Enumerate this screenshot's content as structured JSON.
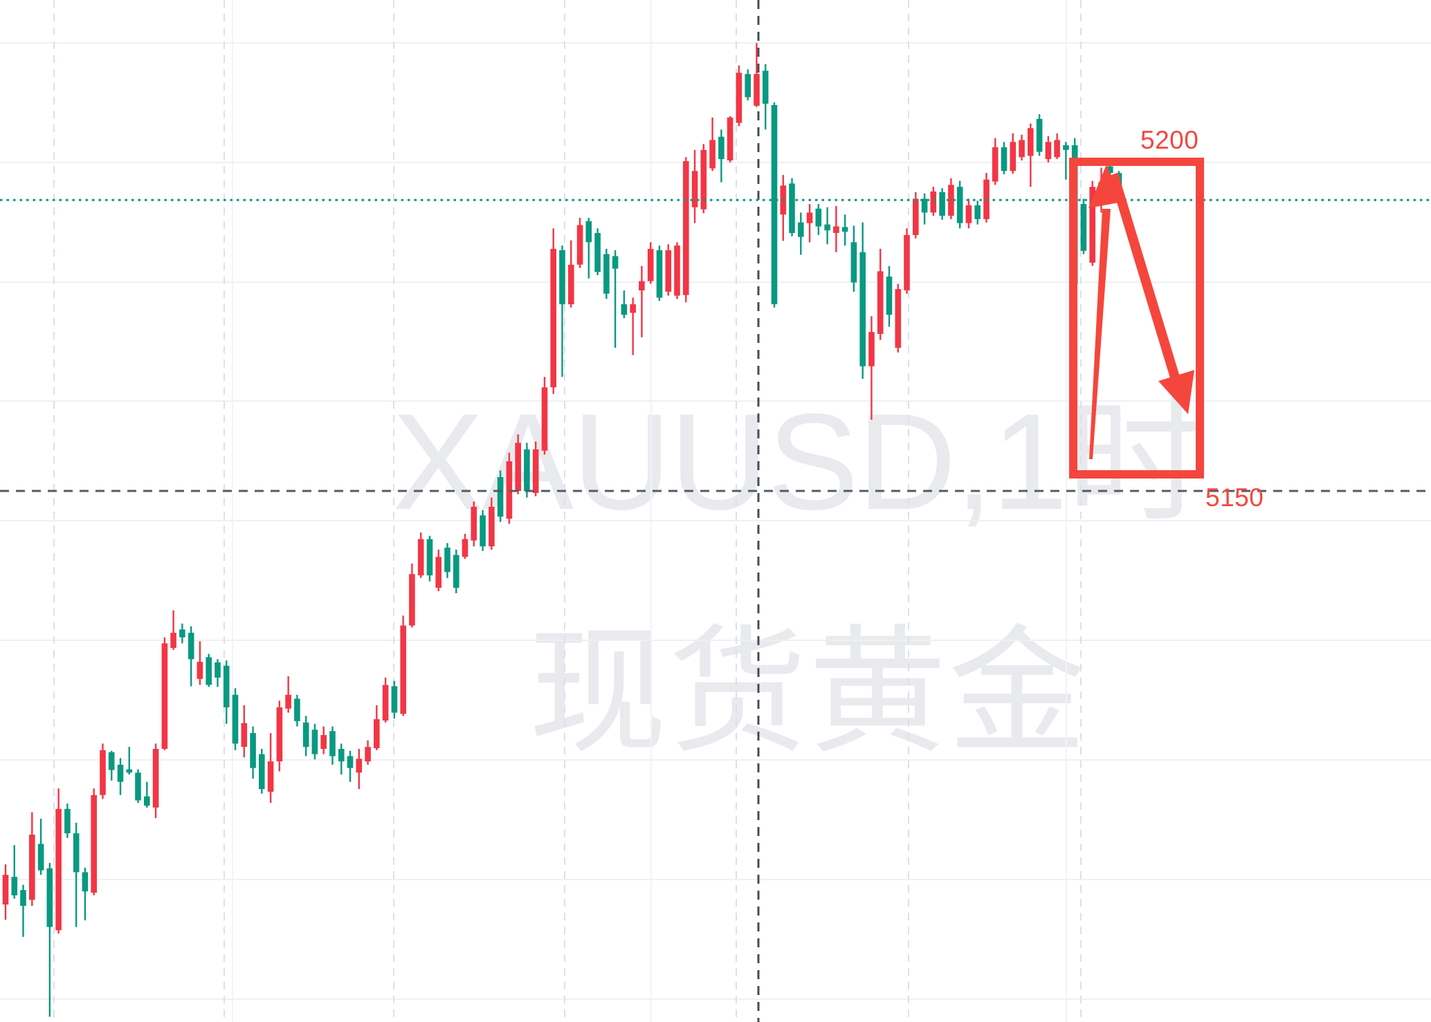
{
  "chart_data": {
    "type": "candlestick",
    "title": "",
    "symbol_watermark": "XAUUSD,1时",
    "name_watermark": "现货黄金",
    "legend_position": "none",
    "grid": "on",
    "ylim": [
      5060,
      5225
    ],
    "levels": {
      "current_price_dotted": 5194.1,
      "support_dashed": 5150
    },
    "annotation_labels": {
      "upper": "5200",
      "lower": "5150"
    },
    "candles_ohlc": [
      [
        5087.3,
        5093.4,
        5085.0,
        5091.8
      ],
      [
        5091.5,
        5096.3,
        5088.2,
        5088.7
      ],
      [
        5089.5,
        5090.3,
        5082.4,
        5087.1
      ],
      [
        5088.0,
        5101.3,
        5087.1,
        5097.9
      ],
      [
        5096.5,
        5100.3,
        5091.8,
        5092.5
      ],
      [
        5092.8,
        5093.6,
        5070.3,
        5083.9
      ],
      [
        5083.4,
        5104.9,
        5082.9,
        5101.8
      ],
      [
        5101.8,
        5102.6,
        5097.4,
        5098.1
      ],
      [
        5098.1,
        5099.7,
        5083.9,
        5092.2
      ],
      [
        5092.2,
        5092.9,
        5084.9,
        5089.3
      ],
      [
        5089.1,
        5104.9,
        5088.7,
        5103.9
      ],
      [
        5103.9,
        5111.7,
        5103.3,
        5110.7
      ],
      [
        5110.4,
        5110.6,
        5106.1,
        5107.7
      ],
      [
        5108.5,
        5109.5,
        5103.9,
        5105.9
      ],
      [
        5107.8,
        5111.2,
        5107.0,
        5107.3
      ],
      [
        5107.3,
        5107.8,
        5102.7,
        5103.1
      ],
      [
        5103.7,
        5105.9,
        5102.0,
        5102.3
      ],
      [
        5102.0,
        5111.7,
        5100.4,
        5110.9
      ],
      [
        5110.9,
        5127.8,
        5110.7,
        5126.9
      ],
      [
        5126.2,
        5131.9,
        5125.9,
        5128.5
      ],
      [
        5129.0,
        5129.9,
        5126.9,
        5127.8
      ],
      [
        5128.5,
        5129.5,
        5120.4,
        5124.5
      ],
      [
        5121.5,
        5127.2,
        5120.6,
        5124.1
      ],
      [
        5124.8,
        5125.3,
        5120.3,
        5120.6
      ],
      [
        5124.0,
        5124.5,
        5120.3,
        5121.7
      ],
      [
        5123.5,
        5124.3,
        5114.7,
        5117.2
      ],
      [
        5119.1,
        5120.1,
        5110.7,
        5111.7
      ],
      [
        5111.2,
        5117.5,
        5109.6,
        5114.8
      ],
      [
        5113.3,
        5114.3,
        5106.4,
        5108.0
      ],
      [
        5110.1,
        5110.9,
        5104.1,
        5104.8
      ],
      [
        5104.4,
        5113.3,
        5102.7,
        5109.0
      ],
      [
        5109.0,
        5118.2,
        5107.5,
        5117.2
      ],
      [
        5117.0,
        5121.9,
        5116.4,
        5119.1
      ],
      [
        5118.5,
        5119.1,
        5114.3,
        5115.1
      ],
      [
        5114.9,
        5115.9,
        5109.8,
        5111.2
      ],
      [
        5113.8,
        5114.7,
        5109.3,
        5110.1
      ],
      [
        5110.9,
        5114.3,
        5110.1,
        5113.0
      ],
      [
        5113.6,
        5114.3,
        5108.5,
        5109.8
      ],
      [
        5110.9,
        5111.7,
        5107.0,
        5109.0
      ],
      [
        5109.8,
        5110.6,
        5105.9,
        5108.0
      ],
      [
        5107.3,
        5110.9,
        5104.8,
        5109.4
      ],
      [
        5109.0,
        5112.2,
        5108.5,
        5111.2
      ],
      [
        5111.0,
        5117.5,
        5110.7,
        5115.4
      ],
      [
        5115.2,
        5121.7,
        5114.9,
        5120.6
      ],
      [
        5120.4,
        5121.2,
        5115.5,
        5116.4
      ],
      [
        5116.2,
        5131.1,
        5115.9,
        5129.6
      ],
      [
        5129.6,
        5139.0,
        5129.3,
        5137.4
      ],
      [
        5137.2,
        5143.7,
        5136.8,
        5142.7
      ],
      [
        5142.7,
        5143.2,
        5136.3,
        5137.2
      ],
      [
        5135.3,
        5141.1,
        5134.8,
        5140.0
      ],
      [
        5141.4,
        5142.1,
        5136.8,
        5137.7
      ],
      [
        5140.3,
        5141.1,
        5134.5,
        5135.3
      ],
      [
        5140.0,
        5143.5,
        5139.7,
        5142.7
      ],
      [
        5142.5,
        5148.4,
        5141.6,
        5147.6
      ],
      [
        5146.3,
        5147.1,
        5140.9,
        5141.6
      ],
      [
        5141.6,
        5149.0,
        5141.1,
        5147.6
      ],
      [
        5152.1,
        5153.1,
        5145.3,
        5146.1
      ],
      [
        5145.8,
        5155.8,
        5145.0,
        5154.5
      ],
      [
        5150.0,
        5158.6,
        5149.5,
        5157.3
      ],
      [
        5156.3,
        5157.3,
        5149.0,
        5150.0
      ],
      [
        5149.7,
        5157.5,
        5149.2,
        5156.3
      ],
      [
        5156.1,
        5167.3,
        5155.5,
        5165.7
      ],
      [
        5165.7,
        5189.8,
        5164.7,
        5186.7
      ],
      [
        5186.5,
        5187.2,
        5167.3,
        5178.3
      ],
      [
        5178.3,
        5188.0,
        5177.8,
        5184.3
      ],
      [
        5184.3,
        5191.4,
        5183.8,
        5190.3
      ],
      [
        5190.9,
        5191.4,
        5182.2,
        5187.7
      ],
      [
        5189.1,
        5189.8,
        5182.7,
        5183.2
      ],
      [
        5185.9,
        5186.7,
        5179.1,
        5179.9
      ],
      [
        5185.6,
        5186.5,
        5171.7,
        5183.7
      ],
      [
        5178.3,
        5180.4,
        5176.2,
        5176.7
      ],
      [
        5177.0,
        5179.3,
        5170.6,
        5178.3
      ],
      [
        5180.4,
        5184.1,
        5173.3,
        5181.8
      ],
      [
        5181.8,
        5187.7,
        5181.4,
        5186.7
      ],
      [
        5186.5,
        5187.2,
        5178.8,
        5179.3
      ],
      [
        5180.2,
        5187.4,
        5179.6,
        5186.5
      ],
      [
        5179.6,
        5187.7,
        5179.1,
        5187.2
      ],
      [
        5179.7,
        5200.6,
        5178.6,
        5200.0
      ],
      [
        5193.0,
        5201.7,
        5190.6,
        5198.5
      ],
      [
        5192.7,
        5202.6,
        5192.1,
        5201.7
      ],
      [
        5198.9,
        5206.6,
        5198.5,
        5203.2
      ],
      [
        5203.7,
        5204.8,
        5196.8,
        5200.3
      ],
      [
        5200.1,
        5206.8,
        5199.8,
        5206.6
      ],
      [
        5205.8,
        5214.5,
        5205.3,
        5213.4
      ],
      [
        5213.2,
        5213.9,
        5209.2,
        5209.7
      ],
      [
        5208.4,
        5217.9,
        5208.2,
        5213.2
      ],
      [
        5213.7,
        5214.7,
        5204.8,
        5208.7
      ],
      [
        5208.5,
        5208.9,
        5177.8,
        5178.3
      ],
      [
        5191.9,
        5197.9,
        5187.9,
        5196.3
      ],
      [
        5196.6,
        5197.4,
        5188.6,
        5189.1
      ],
      [
        5190.7,
        5192.2,
        5185.8,
        5188.5
      ],
      [
        5190.6,
        5193.5,
        5187.7,
        5192.2
      ],
      [
        5192.8,
        5193.5,
        5188.8,
        5190.1
      ],
      [
        5190.4,
        5193.0,
        5187.4,
        5189.5
      ],
      [
        5189.1,
        5193.2,
        5186.2,
        5190.1
      ],
      [
        5190.0,
        5191.9,
        5187.2,
        5189.3
      ],
      [
        5187.7,
        5190.2,
        5180.2,
        5181.6
      ],
      [
        5186.2,
        5190.7,
        5167.0,
        5168.9
      ],
      [
        5168.9,
        5176.5,
        5160.8,
        5174.1
      ],
      [
        5173.8,
        5186.7,
        5172.9,
        5183.3
      ],
      [
        5182.5,
        5184.1,
        5174.9,
        5176.7
      ],
      [
        5171.7,
        5181.4,
        5171.0,
        5180.6
      ],
      [
        5180.4,
        5189.8,
        5179.9,
        5188.8
      ],
      [
        5188.8,
        5195.3,
        5188.3,
        5194.3
      ],
      [
        5194.3,
        5195.1,
        5190.4,
        5192.2
      ],
      [
        5192.2,
        5196.1,
        5191.7,
        5195.4
      ],
      [
        5195.3,
        5195.9,
        5191.1,
        5191.7
      ],
      [
        5191.7,
        5197.4,
        5191.2,
        5196.4
      ],
      [
        5196.1,
        5197.0,
        5189.8,
        5190.6
      ],
      [
        5190.6,
        5194.3,
        5189.8,
        5193.3
      ],
      [
        5193.3,
        5194.0,
        5190.4,
        5191.2
      ],
      [
        5191.2,
        5198.2,
        5190.7,
        5197.2
      ],
      [
        5196.9,
        5203.5,
        5196.4,
        5202.1
      ],
      [
        5202.1,
        5202.9,
        5198.0,
        5198.5
      ],
      [
        5198.5,
        5204.2,
        5198.1,
        5202.9
      ],
      [
        5200.6,
        5204.0,
        5200.1,
        5203.2
      ],
      [
        5200.8,
        5205.7,
        5196.1,
        5205.0
      ],
      [
        5206.4,
        5207.1,
        5200.8,
        5201.4
      ],
      [
        5200.3,
        5203.8,
        5199.8,
        5202.9
      ],
      [
        5200.6,
        5204.2,
        5200.3,
        5203.2
      ],
      [
        5202.4,
        5202.9,
        5197.2,
        5201.7
      ],
      [
        5202.4,
        5203.5,
        5180.9,
        5181.4
      ],
      [
        5193.5,
        5194.3,
        5185.9,
        5186.4
      ],
      [
        5184.6,
        5197.0,
        5184.1,
        5196.1
      ],
      [
        5195.4,
        5199.0,
        5192.2,
        5196.8
      ],
      [
        5199.2,
        5199.5,
        5197.7,
        5198.2
      ],
      [
        5198.2,
        5198.5,
        5193.7,
        5194.1
      ]
    ]
  },
  "colors": {
    "background": "#ffffff",
    "candle_up": "#f23645",
    "candle_down": "#089981",
    "grid_h": "#eef0f4",
    "grid_v_solid": "#f2f3f6",
    "grid_v_dashed": "#dbe0ea",
    "level_dark_dashed": "#555b66",
    "session_dark_dashed": "#454b57",
    "current_price_dotted": "#089981",
    "annotation_red": "#f5463d",
    "watermark": "#e9eaee"
  }
}
